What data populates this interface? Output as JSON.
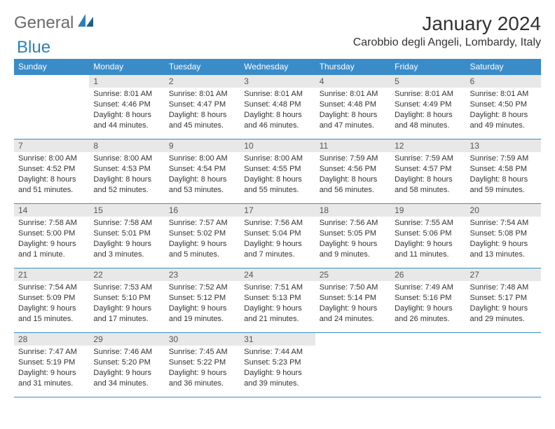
{
  "logo": {
    "general": "General",
    "blue": "Blue"
  },
  "title": "January 2024",
  "location": "Carobbio degli Angeli, Lombardy, Italy",
  "colors": {
    "header_bg": "#3a8cc9",
    "header_text": "#ffffff",
    "daynum_bg": "#e8e8e8",
    "border": "#3a8cc9",
    "text": "#333333",
    "logo_gray": "#6b6b6b",
    "logo_blue": "#2c7fb8"
  },
  "weekdays": [
    "Sunday",
    "Monday",
    "Tuesday",
    "Wednesday",
    "Thursday",
    "Friday",
    "Saturday"
  ],
  "layout": {
    "first_weekday_index": 1,
    "days_in_month": 31,
    "rows": 5,
    "cols": 7
  },
  "days": {
    "1": {
      "sunrise": "Sunrise: 8:01 AM",
      "sunset": "Sunset: 4:46 PM",
      "daylight": "Daylight: 8 hours and 44 minutes."
    },
    "2": {
      "sunrise": "Sunrise: 8:01 AM",
      "sunset": "Sunset: 4:47 PM",
      "daylight": "Daylight: 8 hours and 45 minutes."
    },
    "3": {
      "sunrise": "Sunrise: 8:01 AM",
      "sunset": "Sunset: 4:48 PM",
      "daylight": "Daylight: 8 hours and 46 minutes."
    },
    "4": {
      "sunrise": "Sunrise: 8:01 AM",
      "sunset": "Sunset: 4:48 PM",
      "daylight": "Daylight: 8 hours and 47 minutes."
    },
    "5": {
      "sunrise": "Sunrise: 8:01 AM",
      "sunset": "Sunset: 4:49 PM",
      "daylight": "Daylight: 8 hours and 48 minutes."
    },
    "6": {
      "sunrise": "Sunrise: 8:01 AM",
      "sunset": "Sunset: 4:50 PM",
      "daylight": "Daylight: 8 hours and 49 minutes."
    },
    "7": {
      "sunrise": "Sunrise: 8:00 AM",
      "sunset": "Sunset: 4:52 PM",
      "daylight": "Daylight: 8 hours and 51 minutes."
    },
    "8": {
      "sunrise": "Sunrise: 8:00 AM",
      "sunset": "Sunset: 4:53 PM",
      "daylight": "Daylight: 8 hours and 52 minutes."
    },
    "9": {
      "sunrise": "Sunrise: 8:00 AM",
      "sunset": "Sunset: 4:54 PM",
      "daylight": "Daylight: 8 hours and 53 minutes."
    },
    "10": {
      "sunrise": "Sunrise: 8:00 AM",
      "sunset": "Sunset: 4:55 PM",
      "daylight": "Daylight: 8 hours and 55 minutes."
    },
    "11": {
      "sunrise": "Sunrise: 7:59 AM",
      "sunset": "Sunset: 4:56 PM",
      "daylight": "Daylight: 8 hours and 56 minutes."
    },
    "12": {
      "sunrise": "Sunrise: 7:59 AM",
      "sunset": "Sunset: 4:57 PM",
      "daylight": "Daylight: 8 hours and 58 minutes."
    },
    "13": {
      "sunrise": "Sunrise: 7:59 AM",
      "sunset": "Sunset: 4:58 PM",
      "daylight": "Daylight: 8 hours and 59 minutes."
    },
    "14": {
      "sunrise": "Sunrise: 7:58 AM",
      "sunset": "Sunset: 5:00 PM",
      "daylight": "Daylight: 9 hours and 1 minute."
    },
    "15": {
      "sunrise": "Sunrise: 7:58 AM",
      "sunset": "Sunset: 5:01 PM",
      "daylight": "Daylight: 9 hours and 3 minutes."
    },
    "16": {
      "sunrise": "Sunrise: 7:57 AM",
      "sunset": "Sunset: 5:02 PM",
      "daylight": "Daylight: 9 hours and 5 minutes."
    },
    "17": {
      "sunrise": "Sunrise: 7:56 AM",
      "sunset": "Sunset: 5:04 PM",
      "daylight": "Daylight: 9 hours and 7 minutes."
    },
    "18": {
      "sunrise": "Sunrise: 7:56 AM",
      "sunset": "Sunset: 5:05 PM",
      "daylight": "Daylight: 9 hours and 9 minutes."
    },
    "19": {
      "sunrise": "Sunrise: 7:55 AM",
      "sunset": "Sunset: 5:06 PM",
      "daylight": "Daylight: 9 hours and 11 minutes."
    },
    "20": {
      "sunrise": "Sunrise: 7:54 AM",
      "sunset": "Sunset: 5:08 PM",
      "daylight": "Daylight: 9 hours and 13 minutes."
    },
    "21": {
      "sunrise": "Sunrise: 7:54 AM",
      "sunset": "Sunset: 5:09 PM",
      "daylight": "Daylight: 9 hours and 15 minutes."
    },
    "22": {
      "sunrise": "Sunrise: 7:53 AM",
      "sunset": "Sunset: 5:10 PM",
      "daylight": "Daylight: 9 hours and 17 minutes."
    },
    "23": {
      "sunrise": "Sunrise: 7:52 AM",
      "sunset": "Sunset: 5:12 PM",
      "daylight": "Daylight: 9 hours and 19 minutes."
    },
    "24": {
      "sunrise": "Sunrise: 7:51 AM",
      "sunset": "Sunset: 5:13 PM",
      "daylight": "Daylight: 9 hours and 21 minutes."
    },
    "25": {
      "sunrise": "Sunrise: 7:50 AM",
      "sunset": "Sunset: 5:14 PM",
      "daylight": "Daylight: 9 hours and 24 minutes."
    },
    "26": {
      "sunrise": "Sunrise: 7:49 AM",
      "sunset": "Sunset: 5:16 PM",
      "daylight": "Daylight: 9 hours and 26 minutes."
    },
    "27": {
      "sunrise": "Sunrise: 7:48 AM",
      "sunset": "Sunset: 5:17 PM",
      "daylight": "Daylight: 9 hours and 29 minutes."
    },
    "28": {
      "sunrise": "Sunrise: 7:47 AM",
      "sunset": "Sunset: 5:19 PM",
      "daylight": "Daylight: 9 hours and 31 minutes."
    },
    "29": {
      "sunrise": "Sunrise: 7:46 AM",
      "sunset": "Sunset: 5:20 PM",
      "daylight": "Daylight: 9 hours and 34 minutes."
    },
    "30": {
      "sunrise": "Sunrise: 7:45 AM",
      "sunset": "Sunset: 5:22 PM",
      "daylight": "Daylight: 9 hours and 36 minutes."
    },
    "31": {
      "sunrise": "Sunrise: 7:44 AM",
      "sunset": "Sunset: 5:23 PM",
      "daylight": "Daylight: 9 hours and 39 minutes."
    }
  }
}
